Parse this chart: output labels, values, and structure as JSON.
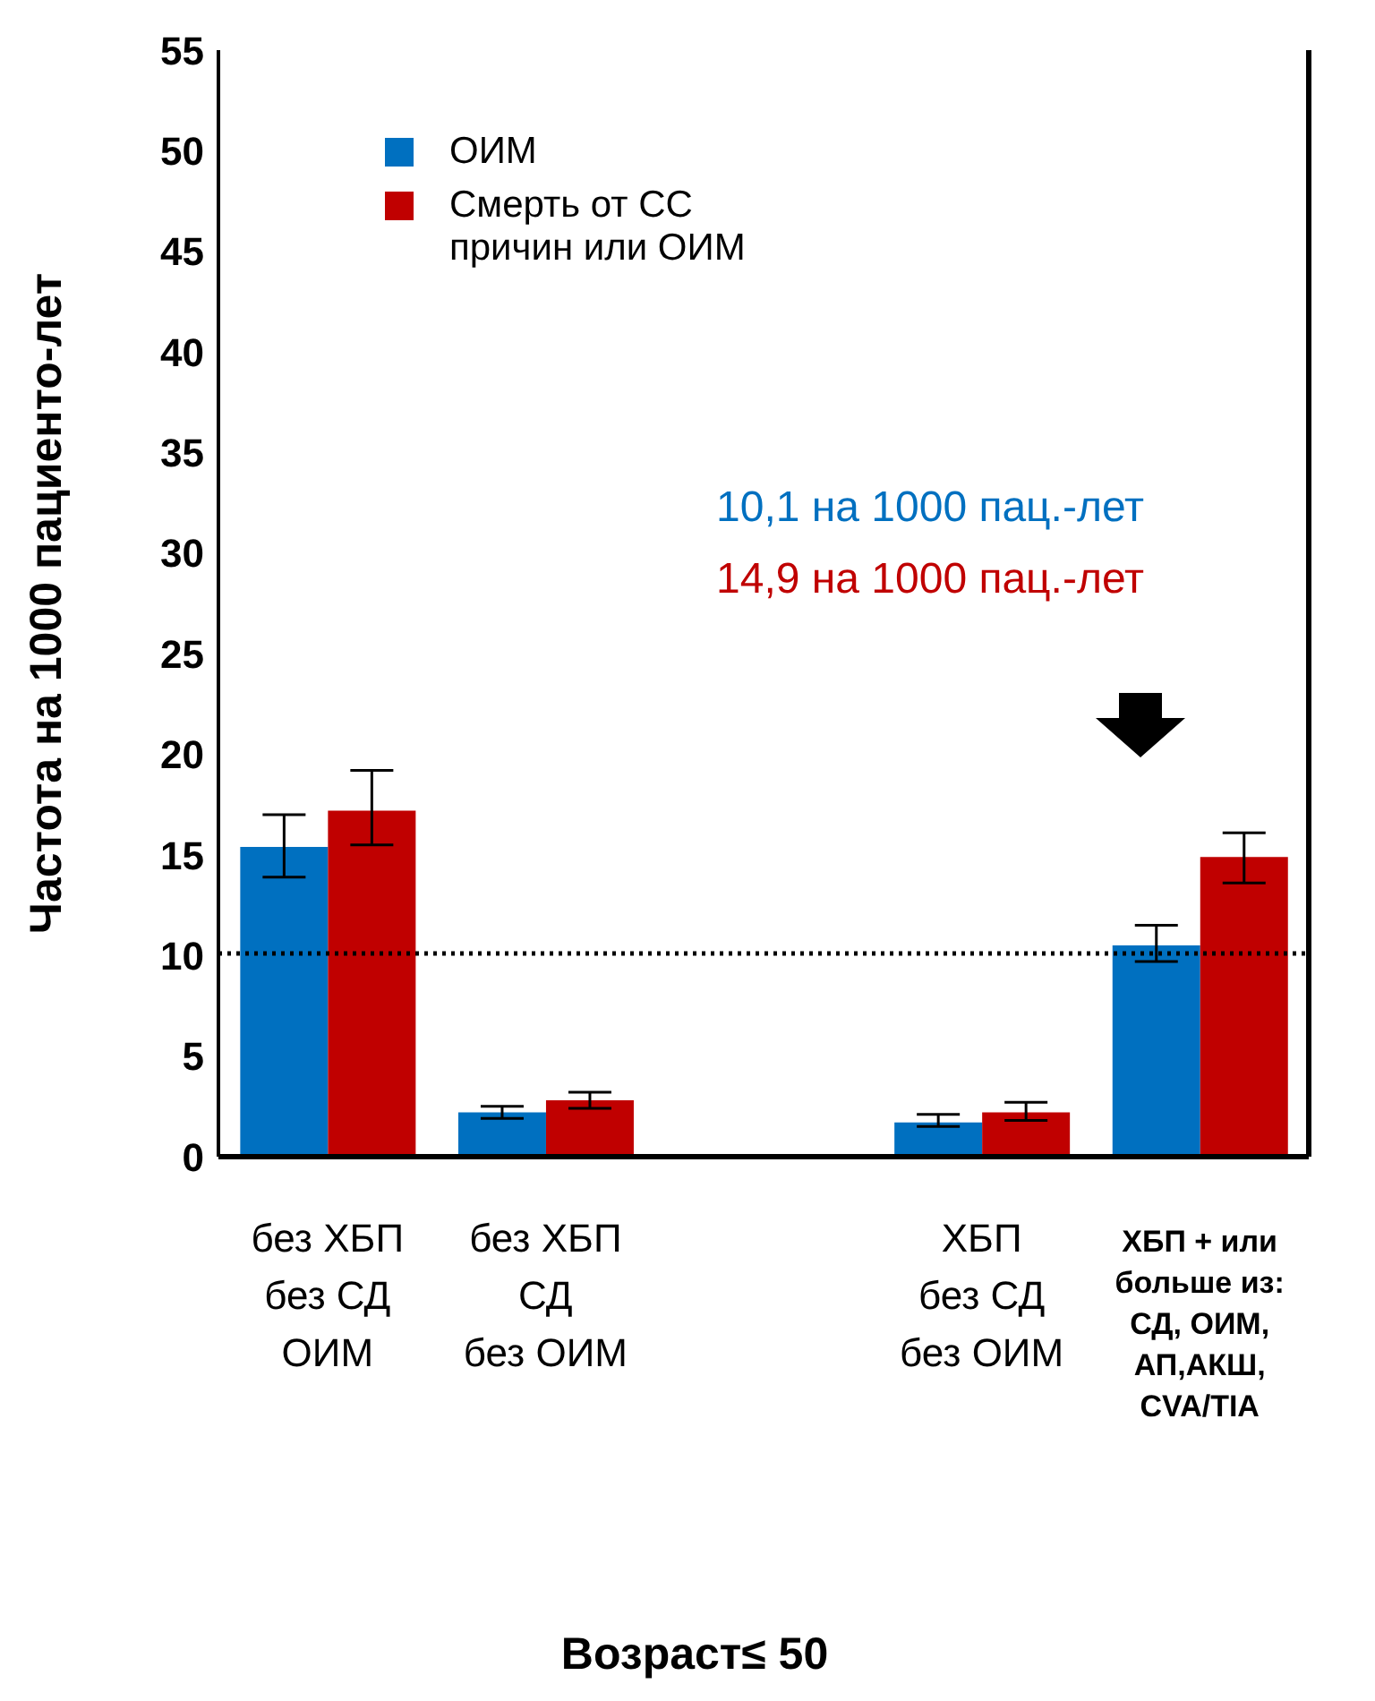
{
  "chart_data": {
    "type": "bar",
    "ylabel": "Частота на 1000 пациенто-лет",
    "categories": [
      "без ХБП\nбез СД\nОИМ",
      "без ХБП\nСД\nбез ОИМ",
      null,
      "ХБП\nбез СД\nбез ОИМ",
      "ХБП +  или\nбольше из:\nСД, ОИМ,\nАП,АКШ,\nCVA/TIA"
    ],
    "series": [
      {
        "name": "ОИМ",
        "color": "#0070c0",
        "values": [
          15.4,
          2.2,
          null,
          1.7,
          10.5
        ],
        "errors": [
          [
            13.9,
            17.0
          ],
          [
            1.9,
            2.5
          ],
          null,
          [
            1.5,
            2.1
          ],
          [
            9.7,
            11.5
          ]
        ]
      },
      {
        "name": "Смерть от СС причин или ОИМ",
        "color": "#c00000",
        "values": [
          17.2,
          2.8,
          null,
          2.2,
          14.9
        ],
        "errors": [
          [
            15.5,
            19.2
          ],
          [
            2.4,
            3.2
          ],
          null,
          [
            1.8,
            2.7
          ],
          [
            13.6,
            16.1
          ]
        ]
      }
    ],
    "ylim": [
      0,
      55
    ],
    "yticks": [
      0,
      5,
      10,
      15,
      20,
      25,
      30,
      35,
      40,
      45,
      50,
      55
    ],
    "grid": false,
    "legend": "top left",
    "ref_lines": [
      {
        "axis": "y",
        "value": 10.1,
        "line_style": "dotted",
        "color": "#000000"
      }
    ],
    "annotations": [
      "10,1 на 1000 пац.-лет",
      "14,9 на 1000 пац.-лет",
      "Возраст≤ 50"
    ]
  }
}
